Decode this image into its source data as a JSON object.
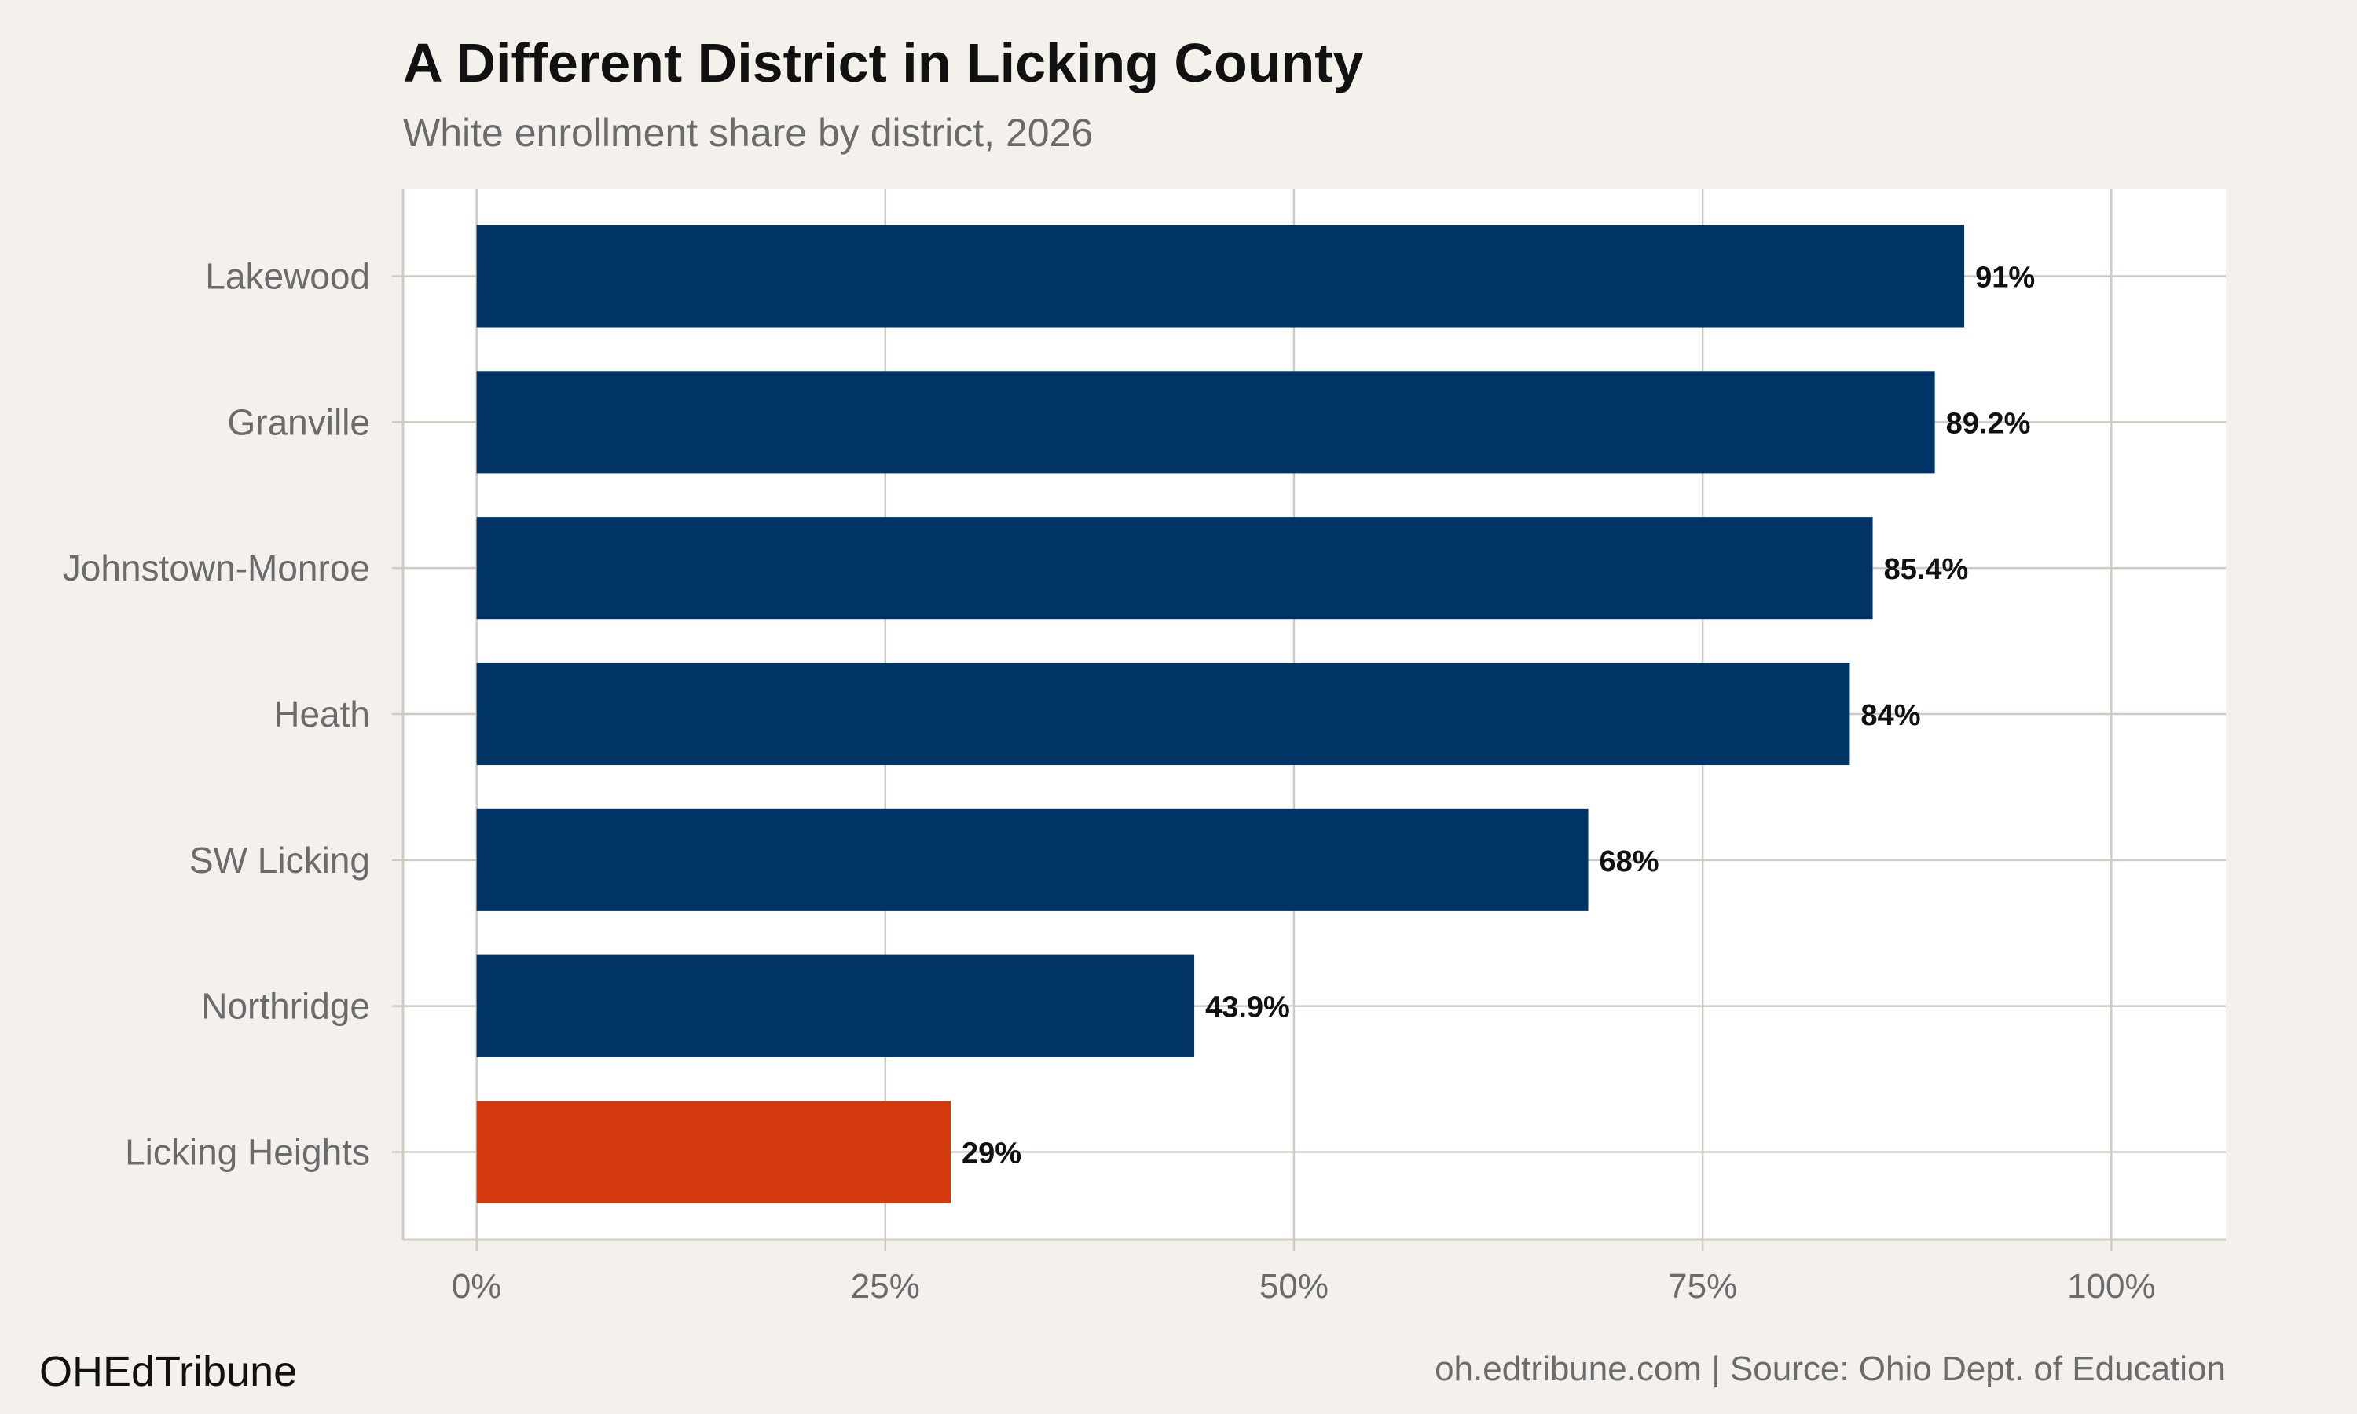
{
  "chart_data": {
    "type": "bar",
    "orientation": "horizontal",
    "title": "A Different District in Licking County",
    "subtitle": "White enrollment share by district, 2026",
    "categories": [
      "Lakewood",
      "Granville",
      "Johnstown-Monroe",
      "Heath",
      "SW Licking",
      "Northridge",
      "Licking Heights"
    ],
    "values": [
      91,
      89.2,
      85.4,
      84,
      68,
      43.9,
      29
    ],
    "data_labels": [
      "91%",
      "89.2%",
      "85.4%",
      "84%",
      "68%",
      "43.9%",
      "29%"
    ],
    "highlight": "Licking Heights",
    "xlim": [
      -4.5,
      107
    ],
    "x_ticks": [
      0,
      25,
      50,
      75,
      100
    ],
    "x_tick_labels": [
      "0%",
      "25%",
      "50%",
      "75%",
      "100%"
    ],
    "xlabel": "",
    "ylabel": "",
    "grid": true,
    "colors": {
      "bar": "#003366",
      "highlight": "#d4380d",
      "panel": "#ffffff",
      "background": "#f4f1ec",
      "grid": "#cfcbc2"
    }
  },
  "footer": {
    "brand": "OHEdTribune",
    "source": "oh.edtribune.com | Source: Ohio Dept. of Education"
  }
}
